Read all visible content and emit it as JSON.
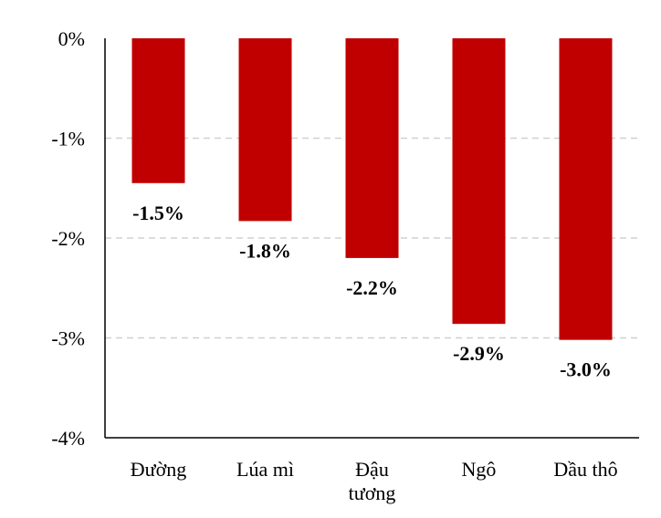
{
  "chart_data": {
    "type": "bar",
    "categories": [
      [
        "Đường"
      ],
      [
        "Lúa mì"
      ],
      [
        "Đậu",
        "tương"
      ],
      [
        "Ngô"
      ],
      [
        "Dầu thô"
      ]
    ],
    "values": [
      -1.45,
      -1.83,
      -2.2,
      -2.86,
      -3.02
    ],
    "data_labels": [
      "-1.5%",
      "-1.8%",
      "-2.2%",
      "-2.9%",
      "-3.0%"
    ],
    "yticks": [
      0,
      -1,
      -2,
      -3,
      -4
    ],
    "ytick_labels": [
      "0%",
      "-1%",
      "-2%",
      "-3%",
      "-4%"
    ],
    "ylim": [
      -4,
      0
    ],
    "grid": true,
    "bar_color": "#c00000",
    "title": "",
    "xlabel": "",
    "ylabel": ""
  }
}
